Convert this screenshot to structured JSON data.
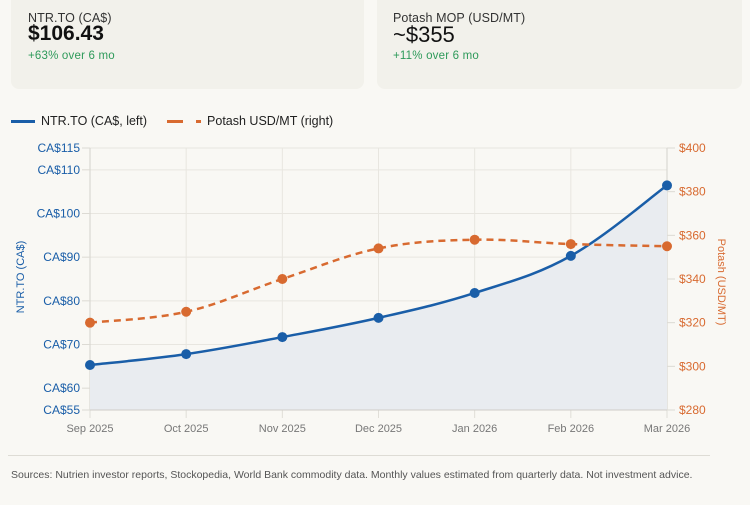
{
  "cards": [
    {
      "label": "NTR.TO (CA$)",
      "value": "$106.43",
      "delta": "+63% over 6 mo"
    },
    {
      "label": "Potash MOP (USD/MT)",
      "value": "~$355",
      "delta": "+11% over 6 mo"
    }
  ],
  "legend": {
    "series1": "NTR.TO (CA$, left)",
    "series2": "Potash USD/MT (right)"
  },
  "colors": {
    "ntr": "#1a5ea8",
    "potash": "#d86a30",
    "positive": "#2e9a5a"
  },
  "chart_data": {
    "type": "line",
    "title": "",
    "x": [
      "Sep 2025",
      "Oct 2025",
      "Nov 2025",
      "Dec 2025",
      "Jan 2026",
      "Feb 2026",
      "Mar 2026"
    ],
    "series": [
      {
        "name": "NTR.TO (CA$, left)",
        "axis": "left",
        "style": "solid",
        "fill": true,
        "values": [
          65.3,
          67.8,
          71.7,
          76.1,
          81.8,
          90.3,
          106.43
        ]
      },
      {
        "name": "Potash USD/MT (right)",
        "axis": "right",
        "style": "dashed",
        "fill": false,
        "values": [
          320,
          325,
          340,
          354,
          358,
          356,
          355
        ]
      }
    ],
    "ylabel_left": "NTR.TO (CA$)",
    "ylabel_right": "Potash (USD/MT)",
    "ylim_left": [
      55,
      115
    ],
    "ylim_right": [
      280,
      400
    ],
    "yticks_left": [
      {
        "v": 115,
        "label": "CA$115"
      },
      {
        "v": 110,
        "label": "CA$110"
      },
      {
        "v": 100,
        "label": "CA$100"
      },
      {
        "v": 90,
        "label": "CA$90"
      },
      {
        "v": 80,
        "label": "CA$80"
      },
      {
        "v": 70,
        "label": "CA$70"
      },
      {
        "v": 60,
        "label": "CA$60"
      },
      {
        "v": 55,
        "label": "CA$55"
      }
    ],
    "yticks_right": [
      {
        "v": 400,
        "label": "$400"
      },
      {
        "v": 380,
        "label": "$380"
      },
      {
        "v": 360,
        "label": "$360"
      },
      {
        "v": 340,
        "label": "$340"
      },
      {
        "v": 320,
        "label": "$320"
      },
      {
        "v": 300,
        "label": "$300"
      },
      {
        "v": 280,
        "label": "$280"
      }
    ],
    "grid": true,
    "legend_position": "top-left"
  },
  "footer": "Sources: Nutrien investor reports, Stockopedia, World Bank commodity data. Monthly values estimated from quarterly data. Not investment advice."
}
